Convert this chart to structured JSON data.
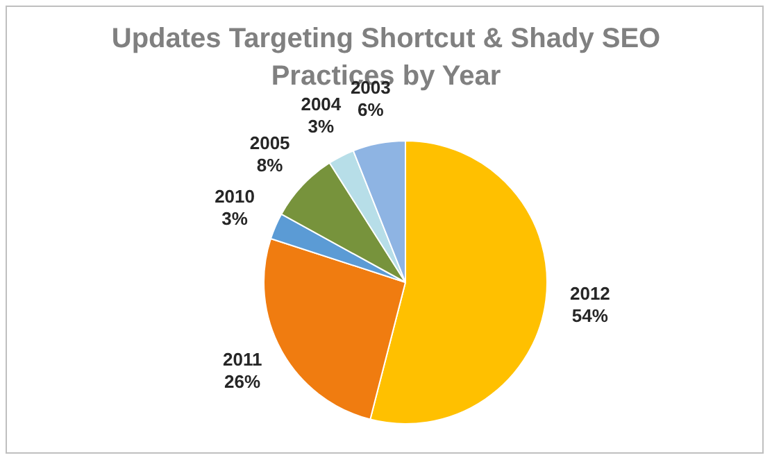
{
  "chart_data": {
    "type": "pie",
    "title": "Updates Targeting Shortcut & Shady SEO Practices by Year",
    "categories": [
      "2012",
      "2011",
      "2010",
      "2005",
      "2004",
      "2003"
    ],
    "values": [
      54,
      26,
      3,
      8,
      3,
      6
    ],
    "value_labels": [
      "54%",
      "26%",
      "3%",
      "8%",
      "3%",
      "6%"
    ],
    "colors": [
      "#ffc000",
      "#f07c10",
      "#5b9bd5",
      "#77933c",
      "#b7dee8",
      "#8eb4e3"
    ],
    "legend": false
  }
}
